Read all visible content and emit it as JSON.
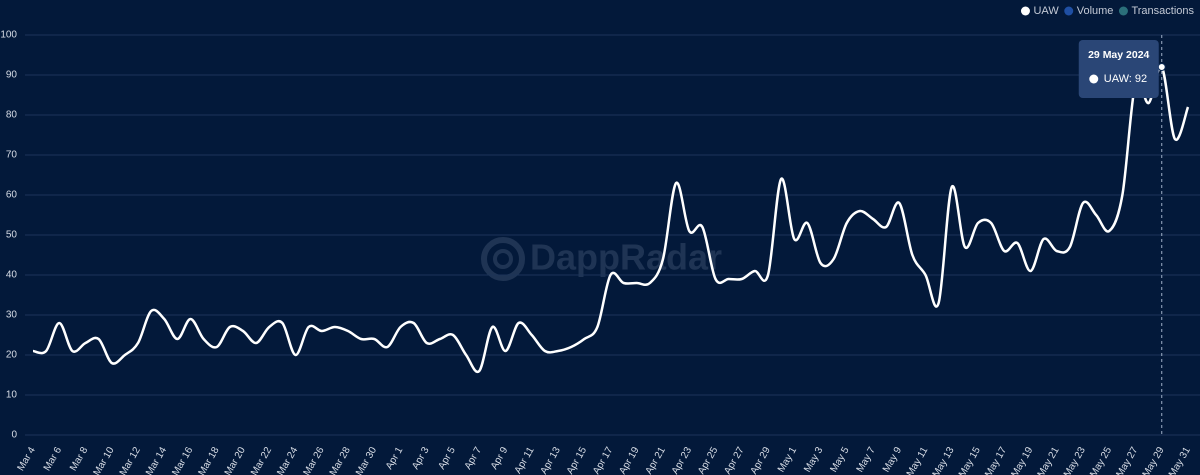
{
  "chart_data": {
    "type": "line",
    "watermark": "DappRadar",
    "legend": [
      {
        "name": "UAW",
        "color": "#ffffff"
      },
      {
        "name": "Volume",
        "color": "#1f4fa3"
      },
      {
        "name": "Transactions",
        "color": "#2b6f7a"
      }
    ],
    "categories": [
      "Mar 4",
      null,
      "Mar 6",
      null,
      "Mar 8",
      null,
      "Mar 10",
      null,
      "Mar 12",
      null,
      "Mar 14",
      null,
      "Mar 16",
      null,
      "Mar 18",
      null,
      "Mar 20",
      null,
      "Mar 22",
      null,
      "Mar 24",
      null,
      "Mar 26",
      null,
      "Mar 28",
      null,
      "Mar 30",
      null,
      "Apr 1",
      null,
      "Apr 3",
      null,
      "Apr 5",
      null,
      "Apr 7",
      null,
      "Apr 9",
      null,
      "Apr 11",
      null,
      "Apr 13",
      null,
      "Apr 15",
      null,
      "Apr 17",
      null,
      "Apr 19",
      null,
      "Apr 21",
      null,
      "Apr 23",
      null,
      "Apr 25",
      null,
      "Apr 27",
      null,
      "Apr 29",
      null,
      "May 1",
      null,
      "May 3",
      null,
      "May 5",
      null,
      "May 7",
      null,
      "May 9",
      null,
      "May 11",
      null,
      "May 13",
      null,
      "May 15",
      null,
      "May 17",
      null,
      "May 19",
      null,
      "May 21",
      null,
      "May 23",
      null,
      "May 25",
      null,
      "May 27",
      null,
      "May 29",
      null,
      "May 31"
    ],
    "series": [
      {
        "name": "UAW",
        "color": "#ffffff",
        "values": [
          21,
          21,
          28,
          21,
          23,
          24,
          18,
          20,
          23,
          31,
          29,
          24,
          29,
          24,
          22,
          27,
          26,
          23,
          27,
          28,
          20,
          27,
          26,
          27,
          26,
          24,
          24,
          22,
          27,
          28,
          23,
          24,
          25,
          20,
          16,
          27,
          21,
          28,
          25,
          21,
          21,
          22,
          24,
          27,
          40,
          38,
          38,
          38,
          44,
          63,
          51,
          52,
          39,
          39,
          39,
          41,
          40,
          64,
          49,
          53,
          43,
          44,
          53,
          56,
          54,
          52,
          58,
          45,
          40,
          33,
          62,
          47,
          53,
          53,
          46,
          48,
          41,
          49,
          46,
          47,
          58,
          55,
          51,
          60,
          88,
          83,
          92,
          74,
          82
        ]
      }
    ],
    "ylim": [
      0,
      100
    ],
    "yticks": [
      0,
      10,
      20,
      30,
      40,
      50,
      60,
      70,
      80,
      90,
      100
    ],
    "grid": true,
    "tooltip": {
      "index": 86,
      "title": "29 May 2024",
      "label": "UAW: 92"
    }
  }
}
